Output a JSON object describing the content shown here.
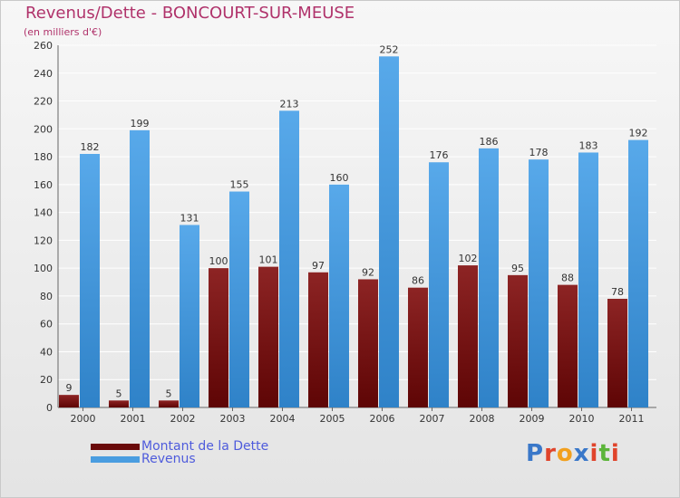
{
  "chart_data": {
    "type": "bar",
    "title": "Revenus/Dette - BONCOURT-SUR-MEUSE",
    "subtitle": "(en milliers d'€)",
    "categories": [
      "2000",
      "2001",
      "2002",
      "2003",
      "2004",
      "2005",
      "2006",
      "2007",
      "2008",
      "2009",
      "2010",
      "2011"
    ],
    "series": [
      {
        "name": "Montant de la Dette",
        "color": "#7a1010",
        "values": [
          9,
          5,
          5,
          100,
          101,
          97,
          92,
          86,
          102,
          95,
          88,
          78
        ]
      },
      {
        "name": "Revenus",
        "color": "#4a9de0",
        "values": [
          182,
          199,
          131,
          155,
          213,
          160,
          252,
          176,
          186,
          178,
          183,
          192
        ]
      }
    ],
    "ylim": [
      0,
      260
    ],
    "yticks": [
      0,
      20,
      40,
      60,
      80,
      100,
      120,
      140,
      160,
      180,
      200,
      220,
      240,
      260
    ],
    "grid": true,
    "legend": "bottom-left"
  },
  "brand": {
    "text": "Proxiti",
    "colors": [
      "#3a78c9",
      "#e0442b",
      "#f2a01e",
      "#3a78c9",
      "#e0442b",
      "#5cb53a",
      "#e0442b"
    ]
  }
}
